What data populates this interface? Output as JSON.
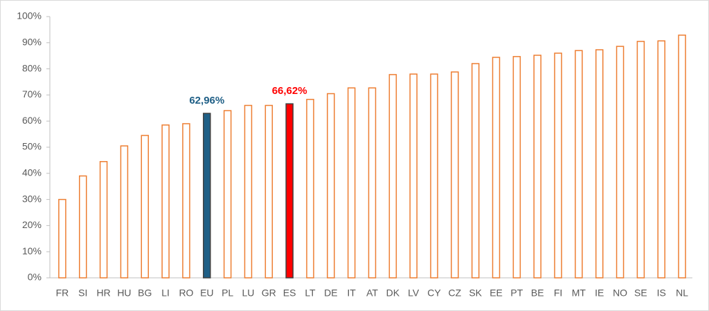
{
  "chart_data": {
    "type": "bar",
    "categories": [
      "FR",
      "SI",
      "HR",
      "HU",
      "BG",
      "LI",
      "RO",
      "EU",
      "PL",
      "LU",
      "GR",
      "ES",
      "LT",
      "DE",
      "IT",
      "AT",
      "DK",
      "LV",
      "CY",
      "CZ",
      "SK",
      "EE",
      "PT",
      "BE",
      "FI",
      "MT",
      "IE",
      "NO",
      "SE",
      "IS",
      "NL"
    ],
    "values": [
      30,
      39,
      44.5,
      50.5,
      54.5,
      58.5,
      59,
      62.96,
      64,
      66,
      66,
      66.62,
      68.3,
      70.5,
      72.7,
      72.7,
      77.8,
      78,
      78,
      78.8,
      82,
      84.4,
      84.7,
      85.2,
      86,
      87,
      87.3,
      88.6,
      90.5,
      90.7,
      92.9
    ],
    "value_labels": [
      null,
      null,
      null,
      null,
      null,
      null,
      null,
      "62,96%",
      null,
      null,
      null,
      "66,62%",
      null,
      null,
      null,
      null,
      null,
      null,
      null,
      null,
      null,
      null,
      null,
      null,
      null,
      null,
      null,
      null,
      null,
      null,
      null
    ],
    "stroke": "#ed7d31",
    "colors": [
      "#ffffff",
      "#ffffff",
      "#ffffff",
      "#ffffff",
      "#ffffff",
      "#ffffff",
      "#ffffff",
      "#1f5f86",
      "#ffffff",
      "#ffffff",
      "#ffffff",
      "#ff0000",
      "#ffffff",
      "#ffffff",
      "#ffffff",
      "#ffffff",
      "#ffffff",
      "#ffffff",
      "#ffffff",
      "#ffffff",
      "#ffffff",
      "#ffffff",
      "#ffffff",
      "#ffffff",
      "#ffffff",
      "#ffffff",
      "#ffffff",
      "#ffffff",
      "#ffffff",
      "#ffffff",
      "#ffffff"
    ],
    "ylim": [
      0,
      100
    ],
    "yticks": [
      {
        "value": 0,
        "label": "0%"
      },
      {
        "value": 10,
        "label": "10%"
      },
      {
        "value": 20,
        "label": "20%"
      },
      {
        "value": 30,
        "label": "30%"
      },
      {
        "value": 40,
        "label": "40%"
      },
      {
        "value": 50,
        "label": "50%"
      },
      {
        "value": 60,
        "label": "60%"
      },
      {
        "value": 70,
        "label": "70%"
      },
      {
        "value": 80,
        "label": "80%"
      },
      {
        "value": 90,
        "label": "90%"
      },
      {
        "value": 100,
        "label": "100%"
      }
    ],
    "grid": false
  }
}
